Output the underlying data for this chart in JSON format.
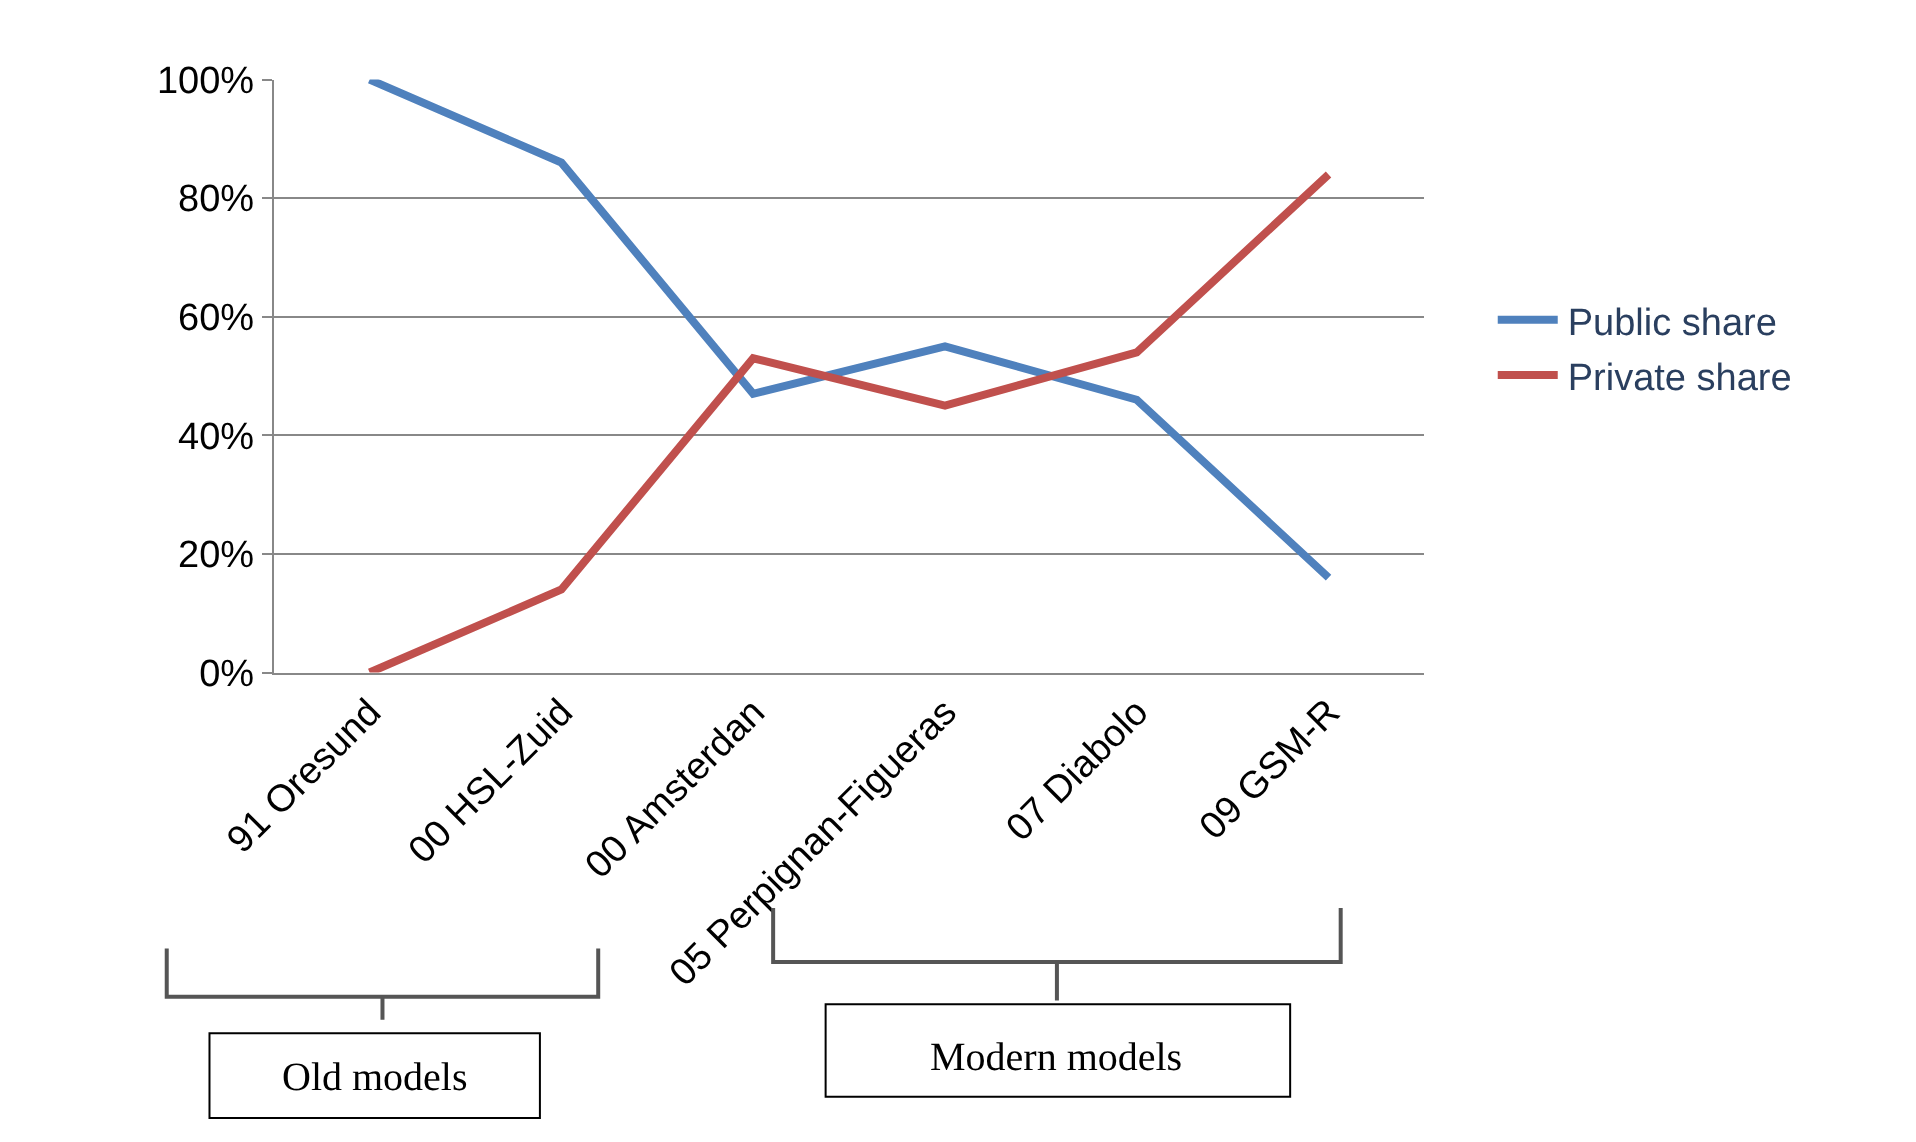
{
  "chart_data": {
    "type": "line",
    "categories": [
      "91 Oresund",
      "00 HSL-Zuid",
      "00 Amsterdan",
      "05 Perpignan-Figueras",
      "07 Diabolo",
      "09 GSM-R"
    ],
    "series": [
      {
        "name": "Public share",
        "color": "#4f81bd",
        "values": [
          100,
          86,
          47,
          55,
          46,
          16
        ]
      },
      {
        "name": "Private share",
        "color": "#c0504d",
        "values": [
          0,
          14,
          53,
          45,
          54,
          84
        ]
      }
    ],
    "ylim": [
      0,
      100
    ],
    "yticks": [
      {
        "value": 0,
        "label": "0%"
      },
      {
        "value": 20,
        "label": "20%"
      },
      {
        "value": 40,
        "label": "40%"
      },
      {
        "value": 60,
        "label": "60%"
      },
      {
        "value": 80,
        "label": "80%"
      },
      {
        "value": 100,
        "label": "100%"
      }
    ],
    "grid": "y",
    "legend": "right",
    "marker": "none",
    "line_style": "solid",
    "annotations": [
      "Old models",
      "Modern models"
    ]
  }
}
